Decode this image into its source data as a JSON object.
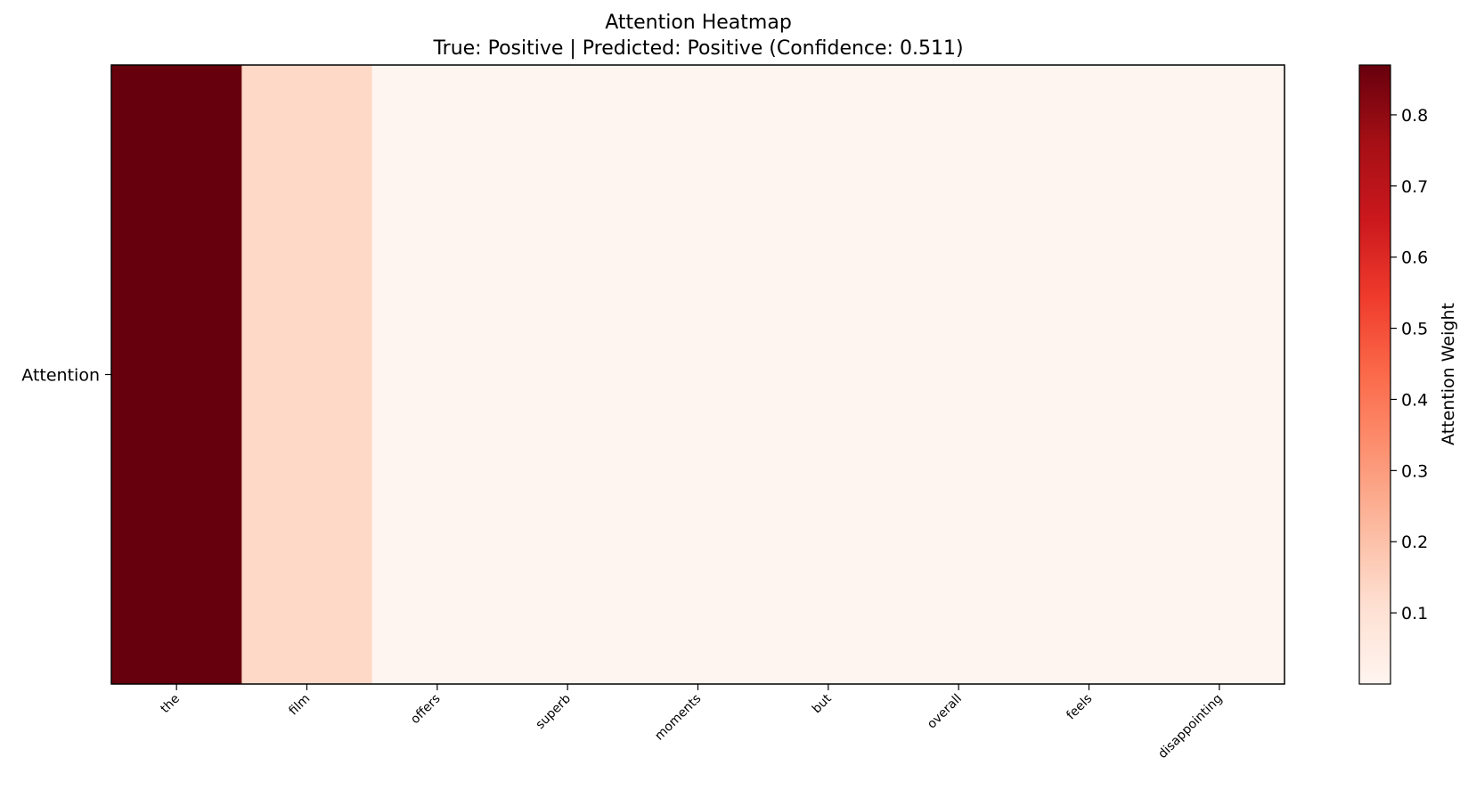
{
  "chart_data": {
    "type": "heatmap",
    "title": "Attention Heatmap",
    "subtitle": "True: Positive | Predicted: Positive (Confidence: 0.511)",
    "x_categories": [
      "the",
      "film",
      "offers",
      "superb",
      "moments",
      "but",
      "overall",
      "feels",
      "disappointing"
    ],
    "y_categories": [
      "Attention"
    ],
    "values": [
      [
        0.87,
        0.13,
        0.0,
        0.0,
        0.0,
        0.0,
        0.0,
        0.0,
        0.0
      ]
    ],
    "colormap": "Reds",
    "colorbar": {
      "label": "Attention Weight",
      "range": [
        0.0,
        0.87
      ],
      "ticks": [
        0.1,
        0.2,
        0.3,
        0.4,
        0.5,
        0.6,
        0.7,
        0.8
      ],
      "tick_labels": [
        "0.1",
        "0.2",
        "0.3",
        "0.4",
        "0.5",
        "0.6",
        "0.7",
        "0.8"
      ]
    },
    "grid": false,
    "colorbar_position": "right"
  }
}
